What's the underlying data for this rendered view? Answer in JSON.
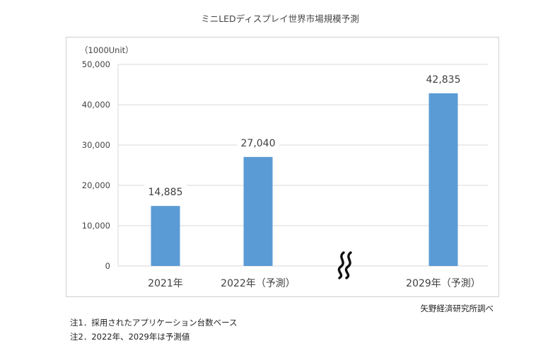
{
  "title": "ミニLEDディスプレイ世界市場規模予測",
  "source": "矢野経済研究所調べ",
  "notes": [
    "注1．採用されたアプリケーション台数ベース",
    "注2．2022年、2029年は予測値"
  ],
  "break_symbol": "≈",
  "chart_data": {
    "type": "bar",
    "title": "ミニLEDディスプレイ世界市場規模予測",
    "unit_label": "（1000Unit）",
    "categories": [
      "2021年",
      "2022年（予測）",
      "2029年（予測）"
    ],
    "values": [
      14885,
      27040,
      42835
    ],
    "value_labels": [
      "14,885",
      "27,040",
      "42,835"
    ],
    "ylim": [
      0,
      50000
    ],
    "yticks": [
      0,
      10000,
      20000,
      30000,
      40000,
      50000
    ],
    "ytick_labels": [
      "0",
      "10,000",
      "20,000",
      "30,000",
      "40,000",
      "50,000"
    ],
    "grid": true,
    "axis_break_between": [
      "2022年（予測）",
      "2029年（予測）"
    ],
    "bar_color": "#5b9bd5"
  }
}
